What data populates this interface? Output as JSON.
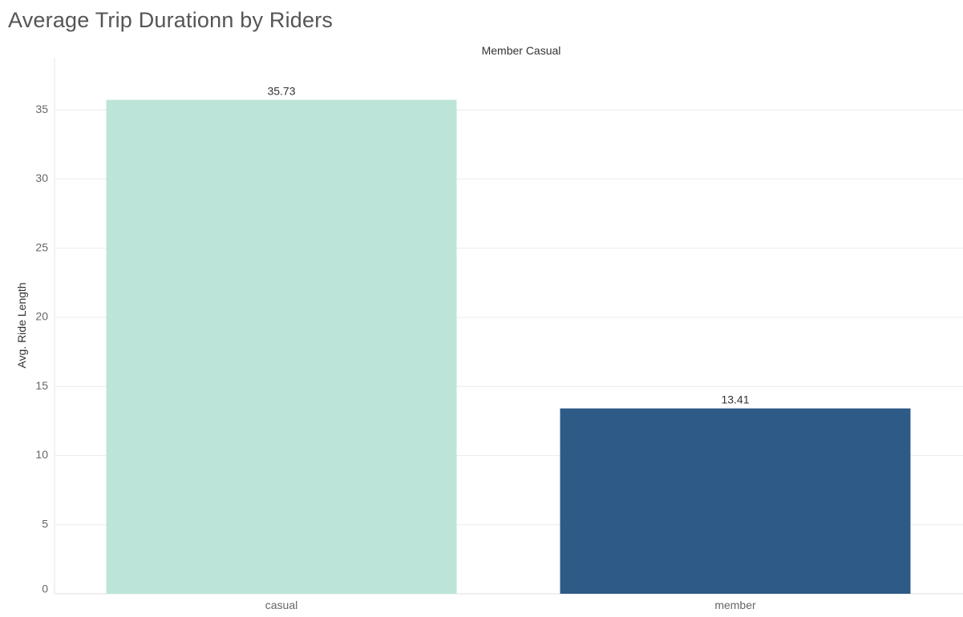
{
  "title": "Average Trip Durationn by Riders",
  "chart_data": {
    "type": "bar",
    "header": "Member Casual",
    "categories": [
      "casual",
      "member"
    ],
    "values": [
      35.73,
      13.41
    ],
    "value_labels": [
      "35.73",
      "13.41"
    ],
    "ylabel": "Avg. Ride Length",
    "xlabel": "",
    "ylim": [
      0,
      38.6
    ],
    "yticks": [
      0,
      5,
      10,
      15,
      20,
      25,
      30,
      35
    ],
    "grid": true,
    "legend": "none",
    "colors": [
      "#bde4d9",
      "#2e5a87"
    ]
  }
}
